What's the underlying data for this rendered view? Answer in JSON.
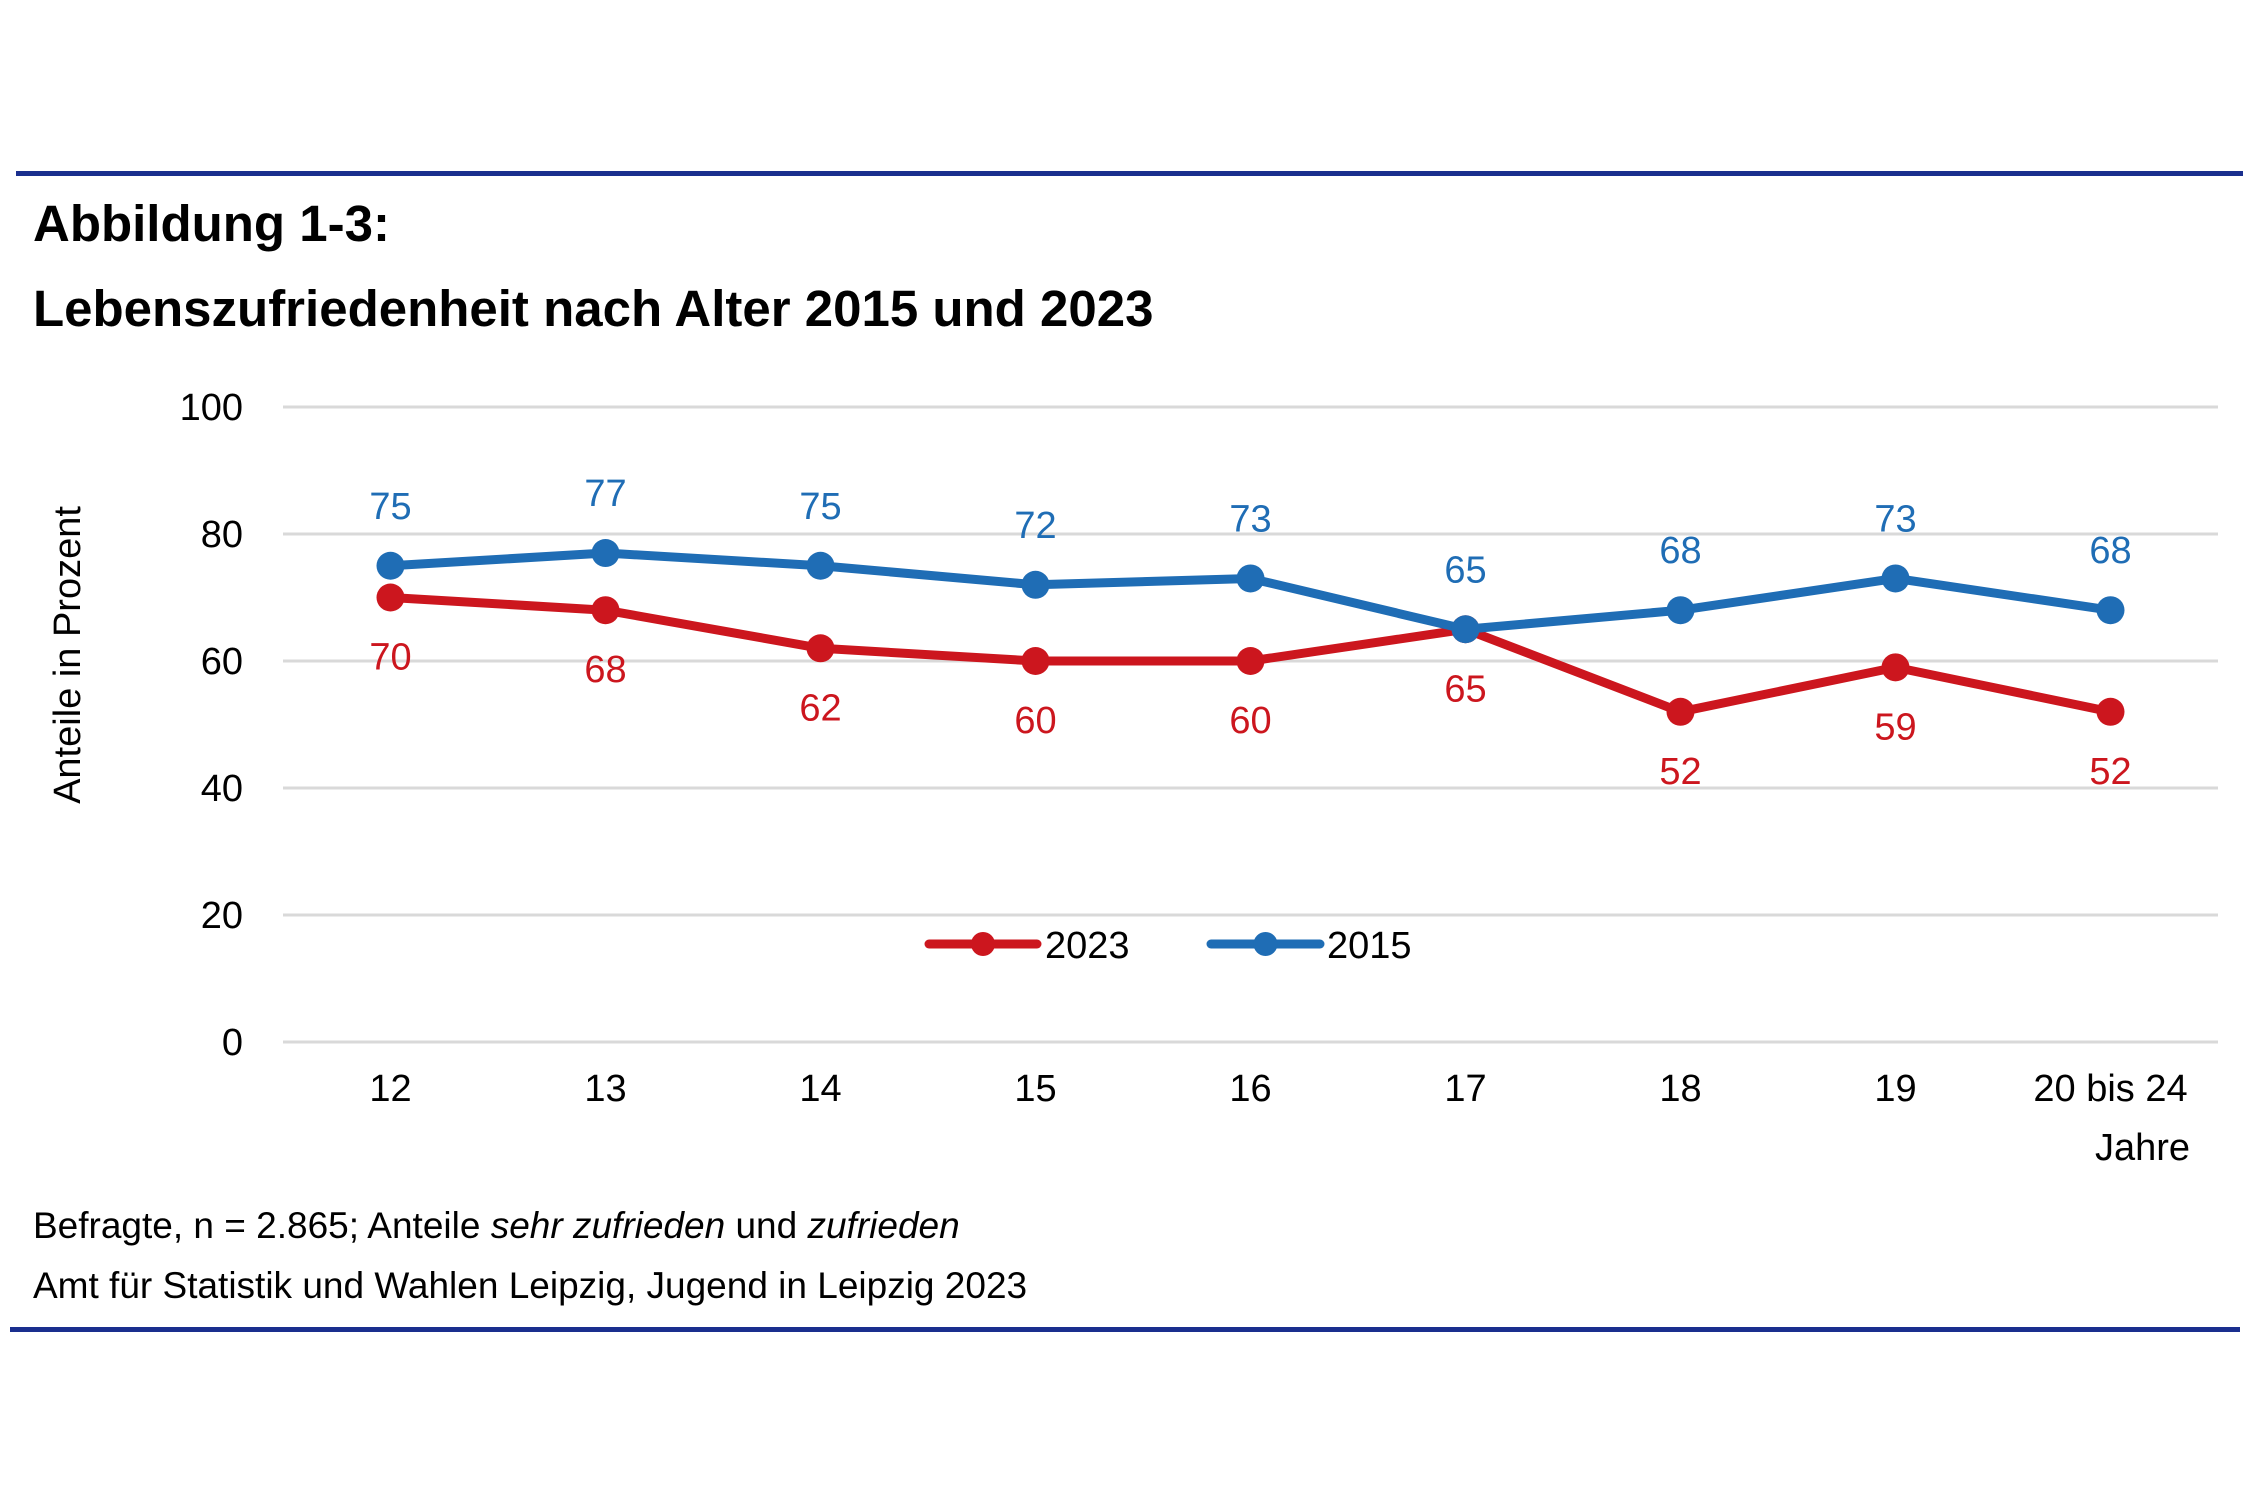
{
  "figure": {
    "label": "Abbildung 1-3:",
    "title": "Lebenszufriedenheit nach Alter 2015 und 2023"
  },
  "footnote": {
    "line1_parts": [
      {
        "text": "Befragte, n = 2.865; Anteile ",
        "italic": false
      },
      {
        "text": "sehr zufrieden",
        "italic": true
      },
      {
        "text": " und ",
        "italic": false
      },
      {
        "text": "zufrieden",
        "italic": true
      }
    ],
    "line2": "Amt für Statistik und Wahlen Leipzig, Jugend in Leipzig 2023"
  },
  "chart_data": {
    "type": "line",
    "title": "Lebenszufriedenheit nach Alter 2015 und 2023",
    "xlabel": "Jahre",
    "ylabel": "Anteile in Prozent",
    "categories": [
      "12",
      "13",
      "14",
      "15",
      "16",
      "17",
      "18",
      "19",
      "20 bis 24"
    ],
    "ylim": [
      0,
      100
    ],
    "yticks": [
      0,
      20,
      40,
      60,
      80,
      100
    ],
    "grid": true,
    "legend_position": "bottom-center (inside plot)",
    "series": [
      {
        "name": "2023",
        "color": "#cc161e",
        "label_position": "below",
        "values": [
          70,
          68,
          62,
          60,
          60,
          65,
          52,
          59,
          52
        ]
      },
      {
        "name": "2015",
        "color": "#1f6db5",
        "label_position": "above",
        "values": [
          75,
          77,
          75,
          72,
          73,
          65,
          68,
          73,
          68
        ]
      }
    ]
  }
}
